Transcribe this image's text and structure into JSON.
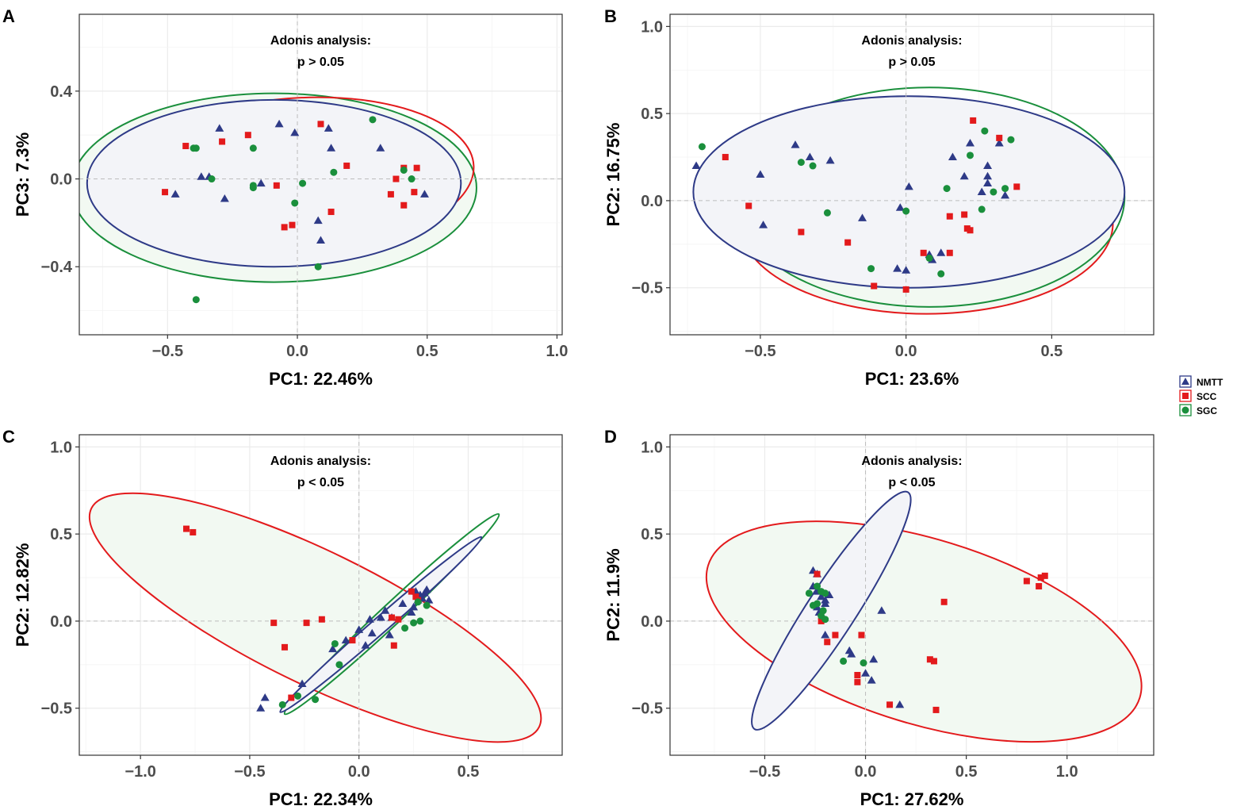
{
  "colors": {
    "NMTT": "#2E3A87",
    "SCC": "#E31A1C",
    "SGC": "#1A8F3C",
    "grid_major": "#EBEBEB",
    "grid_minor": "#F4F4F4",
    "zero_line": "#BDBDBD",
    "panel_border": "#333333"
  },
  "legend": {
    "entries": [
      {
        "name": "NMTT",
        "shape": "triangle"
      },
      {
        "name": "SCC",
        "shape": "square"
      },
      {
        "name": "SGC",
        "shape": "circle"
      }
    ]
  },
  "chart_data": [
    {
      "panel": "A",
      "type": "scatter",
      "xlabel": "PC1: 22.46%",
      "ylabel": "PC3: 7.3%",
      "xlim": [
        -0.84,
        1.02
      ],
      "ylim": [
        -0.71,
        0.75
      ],
      "xticks": [
        -0.5,
        0.0,
        0.5,
        1.0
      ],
      "xtick_labels": [
        "−0.5",
        "0.0",
        "0.5",
        "1.0"
      ],
      "yticks": [
        -0.4,
        0.0,
        0.4
      ],
      "ytick_labels": [
        "−0.4",
        "0.0",
        "0.4"
      ],
      "annotation": [
        "Adonis analysis:",
        "p > 0.05"
      ],
      "ellipses": [
        {
          "group": "SGC",
          "cx": -0.09,
          "cy": -0.04,
          "rx": 0.78,
          "ry": 0.43,
          "angle": 0,
          "fill": "#F2F9F2"
        },
        {
          "group": "SCC",
          "cx": 0.02,
          "cy": 0.02,
          "rx": 0.66,
          "ry": 0.35,
          "angle": -3,
          "fill": "none"
        },
        {
          "group": "NMTT",
          "cx": -0.09,
          "cy": -0.02,
          "rx": 0.72,
          "ry": 0.38,
          "angle": 0,
          "fill": "#F3F4F8"
        }
      ],
      "series": [
        {
          "name": "NMTT",
          "points": [
            [
              -0.3,
              0.23
            ],
            [
              -0.07,
              0.25
            ],
            [
              0.12,
              0.23
            ],
            [
              -0.01,
              0.21
            ],
            [
              -0.37,
              0.01
            ],
            [
              -0.34,
              0.01
            ],
            [
              -0.47,
              -0.07
            ],
            [
              -0.28,
              -0.09
            ],
            [
              -0.14,
              -0.02
            ],
            [
              0.32,
              0.14
            ],
            [
              0.08,
              -0.19
            ],
            [
              0.09,
              -0.28
            ],
            [
              0.49,
              -0.07
            ],
            [
              0.13,
              0.14
            ]
          ]
        },
        {
          "name": "SCC",
          "points": [
            [
              -0.43,
              0.15
            ],
            [
              -0.29,
              0.17
            ],
            [
              -0.19,
              0.2
            ],
            [
              0.09,
              0.25
            ],
            [
              0.19,
              0.06
            ],
            [
              -0.51,
              -0.06
            ],
            [
              -0.08,
              -0.03
            ],
            [
              -0.05,
              -0.22
            ],
            [
              -0.02,
              -0.21
            ],
            [
              0.13,
              -0.15
            ],
            [
              0.36,
              -0.07
            ],
            [
              0.38,
              0.0
            ],
            [
              0.41,
              0.05
            ],
            [
              0.46,
              0.05
            ],
            [
              0.41,
              -0.12
            ],
            [
              0.45,
              -0.06
            ]
          ]
        },
        {
          "name": "SGC",
          "points": [
            [
              -0.4,
              0.14
            ],
            [
              -0.39,
              0.14
            ],
            [
              -0.17,
              0.14
            ],
            [
              -0.33,
              0.0
            ],
            [
              -0.17,
              -0.03
            ],
            [
              -0.17,
              -0.04
            ],
            [
              0.02,
              -0.02
            ],
            [
              -0.01,
              -0.11
            ],
            [
              0.14,
              0.03
            ],
            [
              0.29,
              0.27
            ],
            [
              0.41,
              0.04
            ],
            [
              0.44,
              0.0
            ],
            [
              0.08,
              -0.4
            ],
            [
              -0.39,
              -0.55
            ]
          ]
        }
      ]
    },
    {
      "panel": "B",
      "type": "scatter",
      "xlabel": "PC1: 23.6%",
      "ylabel": "PC2: 16.75%",
      "xlim": [
        -0.81,
        0.85
      ],
      "ylim": [
        -0.77,
        1.07
      ],
      "xticks": [
        -0.5,
        0.0,
        0.5
      ],
      "xtick_labels": [
        "−0.5",
        "0.0",
        "0.5"
      ],
      "yticks": [
        -0.5,
        0.0,
        0.5,
        1.0
      ],
      "ytick_labels": [
        "−0.5",
        "0.0",
        "0.5",
        "1.0"
      ],
      "annotation": [
        "Adonis analysis:",
        "p > 0.05"
      ],
      "ellipses": [
        {
          "group": "SCC",
          "cx": 0.07,
          "cy": -0.13,
          "rx": 0.64,
          "ry": 0.52,
          "angle": 0,
          "fill": "#F2F9F2"
        },
        {
          "group": "SGC",
          "cx": 0.08,
          "cy": 0.02,
          "rx": 0.67,
          "ry": 0.63,
          "angle": 0,
          "fill": "none"
        },
        {
          "group": "NMTT",
          "cx": 0.01,
          "cy": 0.05,
          "rx": 0.74,
          "ry": 0.55,
          "angle": 0,
          "fill": "#F3F4F8"
        }
      ],
      "series": [
        {
          "name": "NMTT",
          "points": [
            [
              -0.72,
              0.2
            ],
            [
              -0.5,
              0.15
            ],
            [
              -0.49,
              -0.14
            ],
            [
              -0.38,
              0.32
            ],
            [
              -0.33,
              0.25
            ],
            [
              -0.26,
              0.23
            ],
            [
              -0.15,
              -0.1
            ],
            [
              -0.02,
              -0.04
            ],
            [
              0.01,
              0.08
            ],
            [
              -0.03,
              -0.39
            ],
            [
              0.0,
              -0.4
            ],
            [
              0.08,
              -0.31
            ],
            [
              0.09,
              -0.34
            ],
            [
              0.12,
              -0.3
            ],
            [
              0.16,
              0.25
            ],
            [
              0.2,
              0.14
            ],
            [
              0.22,
              0.33
            ],
            [
              0.26,
              0.05
            ],
            [
              0.28,
              0.2
            ],
            [
              0.28,
              0.14
            ],
            [
              0.28,
              0.1
            ],
            [
              0.32,
              0.33
            ],
            [
              0.34,
              0.03
            ]
          ]
        },
        {
          "name": "SCC",
          "points": [
            [
              -0.62,
              0.25
            ],
            [
              -0.54,
              -0.03
            ],
            [
              -0.36,
              -0.18
            ],
            [
              -0.2,
              -0.24
            ],
            [
              -0.11,
              -0.49
            ],
            [
              0.0,
              -0.51
            ],
            [
              0.06,
              -0.3
            ],
            [
              0.15,
              -0.3
            ],
            [
              0.15,
              -0.09
            ],
            [
              0.2,
              -0.08
            ],
            [
              0.21,
              -0.16
            ],
            [
              0.22,
              -0.17
            ],
            [
              0.23,
              0.46
            ],
            [
              0.32,
              0.36
            ],
            [
              0.38,
              0.08
            ]
          ]
        },
        {
          "name": "SGC",
          "points": [
            [
              -0.7,
              0.31
            ],
            [
              -0.36,
              0.22
            ],
            [
              -0.32,
              0.2
            ],
            [
              -0.27,
              -0.07
            ],
            [
              -0.12,
              -0.39
            ],
            [
              0.0,
              -0.06
            ],
            [
              0.08,
              -0.33
            ],
            [
              0.12,
              -0.42
            ],
            [
              0.14,
              0.07
            ],
            [
              0.22,
              0.26
            ],
            [
              0.27,
              0.4
            ],
            [
              0.26,
              -0.05
            ],
            [
              0.3,
              0.05
            ],
            [
              0.34,
              0.07
            ],
            [
              0.36,
              0.35
            ]
          ]
        }
      ]
    },
    {
      "panel": "C",
      "type": "scatter",
      "xlabel": "PC1: 22.34%",
      "ylabel": "PC2: 12.82%",
      "xlim": [
        -1.28,
        0.93
      ],
      "ylim": [
        -0.77,
        1.07
      ],
      "xticks": [
        -1.0,
        -0.5,
        0.0,
        0.5
      ],
      "xtick_labels": [
        "−1.0",
        "−0.5",
        "0.0",
        "0.5"
      ],
      "yticks": [
        -0.5,
        0.0,
        0.5,
        1.0
      ],
      "ytick_labels": [
        "−0.5",
        "0.0",
        "0.5",
        "1.0"
      ],
      "annotation": [
        "Adonis analysis:",
        "p < 0.05"
      ],
      "ellipses": [
        {
          "group": "SCC",
          "cx": -0.2,
          "cy": 0.02,
          "rx": 1.14,
          "ry": 0.38,
          "angle": 26,
          "fill": "#F2F9F2"
        },
        {
          "group": "SGC",
          "cx": 0.15,
          "cy": 0.04,
          "rx": 0.67,
          "ry": 0.06,
          "angle": -43,
          "fill": "none"
        },
        {
          "group": "NMTT",
          "cx": 0.1,
          "cy": -0.02,
          "rx": 0.61,
          "ry": 0.045,
          "angle": -41,
          "fill": "#F3F4F8"
        }
      ],
      "series": [
        {
          "name": "NMTT",
          "points": [
            [
              -0.45,
              -0.5
            ],
            [
              -0.43,
              -0.44
            ],
            [
              -0.26,
              -0.36
            ],
            [
              -0.12,
              -0.16
            ],
            [
              -0.06,
              -0.11
            ],
            [
              0.0,
              -0.05
            ],
            [
              0.05,
              0.01
            ],
            [
              0.1,
              0.02
            ],
            [
              0.12,
              0.06
            ],
            [
              0.15,
              0.02
            ],
            [
              0.2,
              0.1
            ],
            [
              0.25,
              0.08
            ],
            [
              0.26,
              0.17
            ],
            [
              0.27,
              0.12
            ],
            [
              0.28,
              0.15
            ],
            [
              0.29,
              0.13
            ],
            [
              0.3,
              0.16
            ],
            [
              0.31,
              0.18
            ],
            [
              0.32,
              0.12
            ],
            [
              0.24,
              0.05
            ],
            [
              0.03,
              -0.14
            ],
            [
              0.14,
              -0.08
            ],
            [
              0.06,
              -0.07
            ]
          ]
        },
        {
          "name": "SCC",
          "points": [
            [
              -0.79,
              0.53
            ],
            [
              -0.76,
              0.51
            ],
            [
              -0.39,
              -0.01
            ],
            [
              -0.34,
              -0.15
            ],
            [
              -0.24,
              -0.01
            ],
            [
              -0.17,
              0.01
            ],
            [
              -0.31,
              -0.44
            ],
            [
              -0.03,
              -0.11
            ],
            [
              0.16,
              -0.14
            ],
            [
              0.15,
              0.02
            ],
            [
              0.18,
              0.01
            ],
            [
              0.24,
              0.17
            ],
            [
              0.26,
              0.14
            ],
            [
              0.27,
              0.12
            ]
          ]
        },
        {
          "name": "SGC",
          "points": [
            [
              -0.35,
              -0.48
            ],
            [
              -0.28,
              -0.43
            ],
            [
              -0.2,
              -0.45
            ],
            [
              -0.11,
              -0.13
            ],
            [
              -0.09,
              -0.25
            ],
            [
              0.21,
              -0.04
            ],
            [
              0.25,
              -0.01
            ],
            [
              0.27,
              0.11
            ],
            [
              0.28,
              0.0
            ],
            [
              0.31,
              0.09
            ]
          ]
        }
      ]
    },
    {
      "panel": "D",
      "type": "scatter",
      "xlabel": "PC1: 27.62%",
      "ylabel": "PC2: 11.9%",
      "xlim": [
        -0.97,
        1.43
      ],
      "ylim": [
        -0.77,
        1.07
      ],
      "xticks": [
        -0.5,
        0.0,
        0.5,
        1.0
      ],
      "xtick_labels": [
        "−0.5",
        "0.0",
        "0.5",
        "1.0"
      ],
      "yticks": [
        -0.5,
        0.0,
        0.5,
        1.0
      ],
      "ytick_labels": [
        "−0.5",
        "0.0",
        "0.5",
        "1.0"
      ],
      "annotation": [
        "Adonis analysis:",
        "p < 0.05"
      ],
      "ellipses": [
        {
          "group": "SCC",
          "cx": 0.29,
          "cy": -0.06,
          "rx": 1.12,
          "ry": 0.53,
          "angle": 17,
          "fill": "#F2F9F2"
        },
        {
          "group": "SGC",
          "cx": -0.2,
          "cy": 0.0,
          "rx": 0.44,
          "ry": 0.07,
          "angle": -62,
          "fill": "none"
        },
        {
          "group": "NMTT",
          "cx": -0.17,
          "cy": 0.06,
          "rx": 0.7,
          "ry": 0.14,
          "angle": -57,
          "fill": "#F3F4F8"
        }
      ],
      "series": [
        {
          "name": "NMTT",
          "points": [
            [
              -0.26,
              0.29
            ],
            [
              -0.24,
              0.27
            ],
            [
              -0.26,
              0.2
            ],
            [
              -0.24,
              0.17
            ],
            [
              -0.22,
              0.14
            ],
            [
              -0.2,
              0.12
            ],
            [
              -0.18,
              0.15
            ],
            [
              -0.2,
              0.1
            ],
            [
              -0.24,
              0.08
            ],
            [
              -0.23,
              0.05
            ],
            [
              -0.2,
              -0.08
            ],
            [
              -0.08,
              -0.17
            ],
            [
              -0.07,
              -0.19
            ],
            [
              0.0,
              -0.3
            ],
            [
              0.03,
              -0.34
            ],
            [
              0.04,
              -0.22
            ],
            [
              0.08,
              0.06
            ],
            [
              0.17,
              -0.48
            ]
          ]
        },
        {
          "name": "SCC",
          "points": [
            [
              -0.24,
              0.27
            ],
            [
              -0.22,
              0.0
            ],
            [
              -0.19,
              -0.12
            ],
            [
              -0.15,
              -0.08
            ],
            [
              -0.02,
              -0.08
            ],
            [
              -0.04,
              -0.31
            ],
            [
              -0.04,
              -0.35
            ],
            [
              0.12,
              -0.48
            ],
            [
              0.32,
              -0.22
            ],
            [
              0.34,
              -0.23
            ],
            [
              0.35,
              -0.51
            ],
            [
              0.39,
              0.11
            ],
            [
              0.8,
              0.23
            ],
            [
              0.86,
              0.2
            ],
            [
              0.87,
              0.25
            ],
            [
              0.89,
              0.26
            ]
          ]
        },
        {
          "name": "SGC",
          "points": [
            [
              -0.28,
              0.16
            ],
            [
              -0.24,
              0.2
            ],
            [
              -0.22,
              0.17
            ],
            [
              -0.2,
              0.16
            ],
            [
              -0.24,
              0.1
            ],
            [
              -0.21,
              0.06
            ],
            [
              -0.26,
              0.09
            ],
            [
              -0.22,
              0.03
            ],
            [
              -0.2,
              0.01
            ],
            [
              -0.11,
              -0.23
            ],
            [
              -0.01,
              -0.24
            ]
          ]
        }
      ]
    }
  ]
}
